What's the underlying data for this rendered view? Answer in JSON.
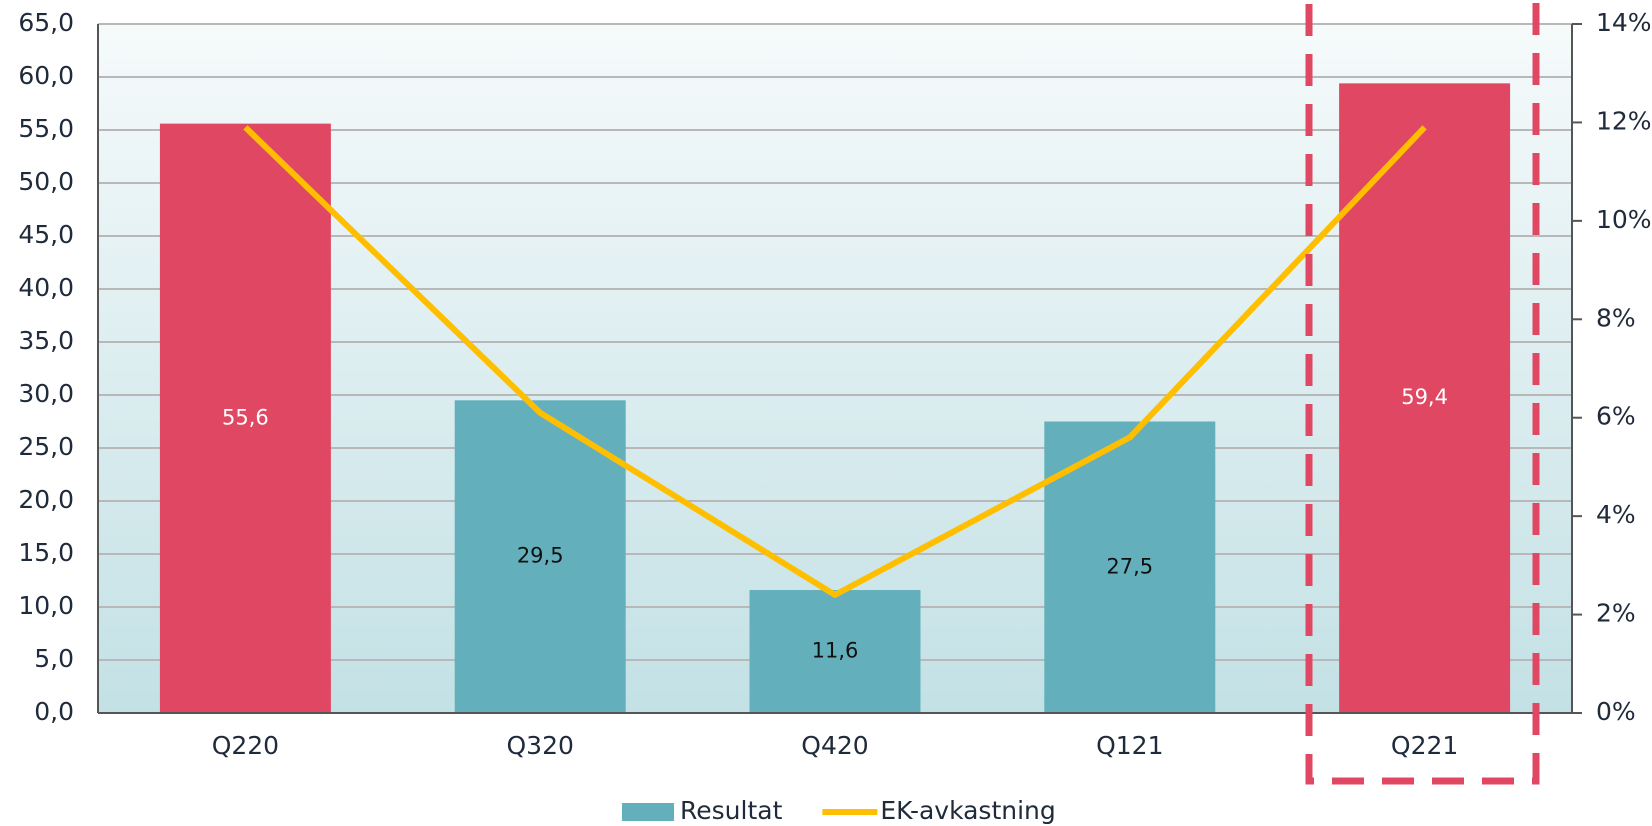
{
  "chart_data": {
    "type": "bar",
    "categories": [
      "Q220",
      "Q320",
      "Q420",
      "Q121",
      "Q221"
    ],
    "series": [
      {
        "name": "Resultat",
        "type": "bar",
        "color": "#63b0bc",
        "colors": [
          "#e04762",
          "#63b0bc",
          "#63b0bc",
          "#63b0bc",
          "#e04762"
        ],
        "values": [
          55.6,
          29.5,
          11.6,
          27.5,
          59.4
        ],
        "value_labels": [
          "55,6",
          "29,5",
          "11,6",
          "27,5",
          "59,4"
        ]
      },
      {
        "name": "EK-avkastning",
        "type": "line",
        "axis": "y2",
        "color": "#ffbf00",
        "values": [
          11.9,
          6.1,
          2.4,
          5.6,
          11.9
        ]
      }
    ],
    "ylim": [
      0,
      65
    ],
    "yticks": [
      {
        "value": 0,
        "label": "0,0"
      },
      {
        "value": 5,
        "label": "5,0"
      },
      {
        "value": 10,
        "label": "10,0"
      },
      {
        "value": 15,
        "label": "15,0"
      },
      {
        "value": 20,
        "label": "20,0"
      },
      {
        "value": 25,
        "label": "25,0"
      },
      {
        "value": 30,
        "label": "30,0"
      },
      {
        "value": 35,
        "label": "35,0"
      },
      {
        "value": 40,
        "label": "40,0"
      },
      {
        "value": 45,
        "label": "45,0"
      },
      {
        "value": 50,
        "label": "50,0"
      },
      {
        "value": 55,
        "label": "55,0"
      },
      {
        "value": 60,
        "label": "60,0"
      },
      {
        "value": 65,
        "label": "65,0"
      }
    ],
    "y2lim": [
      0,
      14
    ],
    "y2ticks": [
      {
        "value": 0,
        "label": "0%"
      },
      {
        "value": 2,
        "label": "2%"
      },
      {
        "value": 4,
        "label": "4%"
      },
      {
        "value": 6,
        "label": "6%"
      },
      {
        "value": 8,
        "label": "8%"
      },
      {
        "value": 10,
        "label": "10%"
      },
      {
        "value": 12,
        "label": "12%"
      },
      {
        "value": 14,
        "label": "14%"
      }
    ],
    "grid": true,
    "legend": "bottom"
  }
}
